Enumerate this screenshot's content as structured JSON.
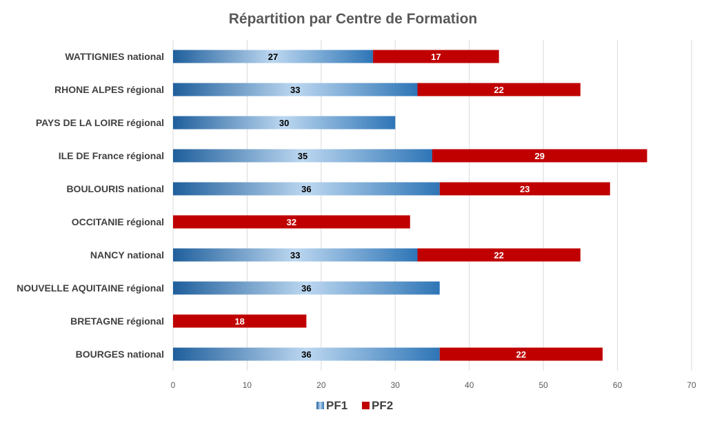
{
  "chart_data": {
    "type": "bar",
    "orientation": "horizontal",
    "stacked": true,
    "title": "Répartition par Centre de Formation",
    "categories": [
      "WATTIGNIES national",
      "RHONE ALPES régional",
      "PAYS DE LA LOIRE régional",
      "ILE DE France régional",
      "BOULOURIS national",
      "OCCITANIE régional",
      "NANCY national",
      "NOUVELLE AQUITAINE régional",
      "BRETAGNE régional",
      "BOURGES national"
    ],
    "series": [
      {
        "name": "PF1",
        "color": "#2e75b6",
        "label_color": "#000000",
        "values": [
          27,
          33,
          30,
          35,
          36,
          null,
          33,
          36,
          null,
          36
        ]
      },
      {
        "name": "PF2",
        "color": "#c00000",
        "label_color": "#ffffff",
        "values": [
          17,
          22,
          null,
          29,
          23,
          32,
          22,
          null,
          18,
          22
        ]
      }
    ],
    "xlim": [
      0,
      70
    ],
    "xticks": [
      0,
      10,
      20,
      30,
      40,
      50,
      60,
      70
    ],
    "grid": "vertical",
    "legend": "bottom"
  }
}
